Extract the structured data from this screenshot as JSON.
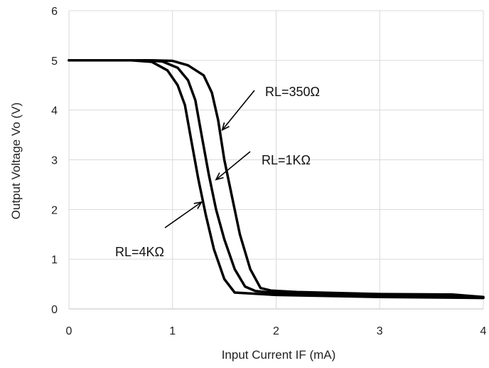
{
  "chart_data": {
    "type": "line",
    "title": "",
    "xlabel": "Input Current  IF  (mA)",
    "ylabel": "Output Voltage Vo  (V)",
    "xlim": [
      0,
      4
    ],
    "ylim": [
      0,
      6
    ],
    "xticks": [
      "0",
      "1",
      "2",
      "3",
      "4"
    ],
    "yticks": [
      "0",
      "1",
      "2",
      "3",
      "4",
      "5",
      "6"
    ],
    "grid": true,
    "legend": "none",
    "series": [
      {
        "name": "RL=4KΩ",
        "x": [
          0,
          0.6,
          0.8,
          0.95,
          1.05,
          1.12,
          1.18,
          1.25,
          1.32,
          1.4,
          1.5,
          1.6,
          2.0,
          3.0,
          4.0
        ],
        "y": [
          5.0,
          5.0,
          4.97,
          4.8,
          4.5,
          4.1,
          3.4,
          2.6,
          1.9,
          1.2,
          0.6,
          0.33,
          0.28,
          0.24,
          0.22
        ]
      },
      {
        "name": "RL=1KΩ",
        "x": [
          0,
          0.7,
          0.9,
          1.05,
          1.15,
          1.22,
          1.28,
          1.35,
          1.42,
          1.5,
          1.6,
          1.7,
          1.8,
          2.0,
          3.0,
          4.0
        ],
        "y": [
          5.0,
          5.0,
          4.98,
          4.85,
          4.6,
          4.2,
          3.5,
          2.7,
          2.0,
          1.4,
          0.8,
          0.45,
          0.36,
          0.32,
          0.27,
          0.23
        ]
      },
      {
        "name": "RL=350Ω",
        "x": [
          0,
          0.8,
          1.0,
          1.15,
          1.3,
          1.38,
          1.44,
          1.5,
          1.57,
          1.65,
          1.75,
          1.85,
          1.95,
          2.2,
          3.0,
          3.7,
          4.0
        ],
        "y": [
          5.0,
          5.0,
          4.99,
          4.9,
          4.7,
          4.35,
          3.8,
          3.0,
          2.3,
          1.5,
          0.8,
          0.42,
          0.37,
          0.34,
          0.3,
          0.29,
          0.24
        ]
      }
    ],
    "annotations": [
      {
        "text": "RL=350Ω",
        "arrow_to": [
          1.48,
          3.6
        ]
      },
      {
        "text": "RL=1KΩ",
        "arrow_to": [
          1.42,
          2.6
        ]
      },
      {
        "text": "RL=4KΩ",
        "arrow_to": [
          1.28,
          2.15
        ]
      }
    ]
  }
}
